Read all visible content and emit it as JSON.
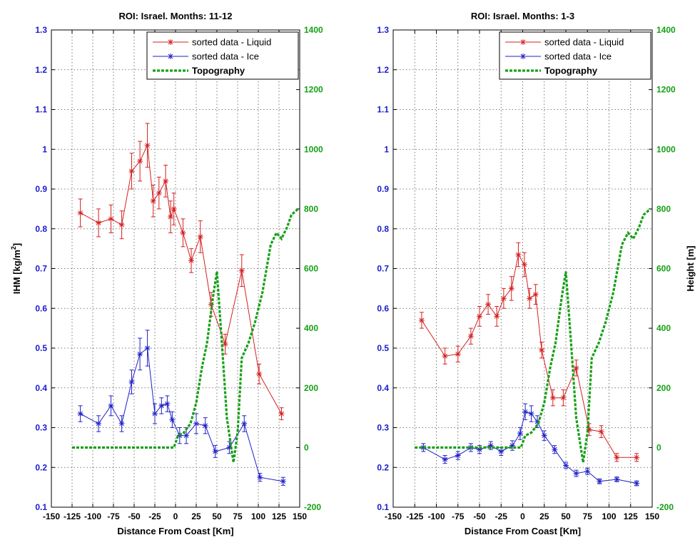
{
  "colors": {
    "liquid": "#d42020",
    "ice": "#2020c8",
    "topo": "#18a018",
    "left_axis": "#1a1ad0",
    "right_axis": "#14a014",
    "grid": "#555555"
  },
  "chart_data": [
    {
      "type": "line",
      "title": "ROI: Israel. Months: 11-12",
      "xlabel": "Distance From Coast [Km]",
      "ylabel_left": "IHM [kg/m",
      "ylabel_left_sup": "2",
      "ylabel_left_close": "]",
      "ylabel_right": "",
      "xlim": [
        -150,
        150
      ],
      "ylim_left": [
        0.1,
        1.3
      ],
      "ylim_right": [
        -200,
        1400
      ],
      "x_ticks": [
        -150,
        -125,
        -100,
        -75,
        -50,
        -25,
        0,
        25,
        50,
        75,
        100,
        125,
        150
      ],
      "y_ticks_left": [
        0.1,
        0.2,
        0.3,
        0.4,
        0.5,
        0.6,
        0.7,
        0.8,
        0.9,
        1,
        1.1,
        1.2,
        1.3
      ],
      "y_ticks_right": [
        -200,
        0,
        200,
        400,
        600,
        800,
        1000,
        1200,
        1400
      ],
      "grid": true,
      "legend_position": "top-right",
      "legend": [
        "sorted data - Liquid",
        "sorted data - Ice",
        "Topography"
      ],
      "series": [
        {
          "name": "sorted data - Liquid",
          "axis": "left",
          "marker": "star",
          "errorbars": true,
          "x": [
            -115,
            -93,
            -78,
            -65,
            -53,
            -43,
            -34,
            -27,
            -20,
            -12,
            -6,
            -2,
            9,
            19,
            30,
            43,
            60,
            80,
            101,
            128
          ],
          "y": [
            0.84,
            0.815,
            0.825,
            0.81,
            0.945,
            0.97,
            1.01,
            0.87,
            0.89,
            0.92,
            0.83,
            0.85,
            0.79,
            0.72,
            0.78,
            0.61,
            0.51,
            0.695,
            0.435,
            0.335
          ],
          "err": [
            0.035,
            0.035,
            0.035,
            0.035,
            0.045,
            0.05,
            0.055,
            0.04,
            0.04,
            0.04,
            0.04,
            0.04,
            0.035,
            0.03,
            0.04,
            0.03,
            0.025,
            0.04,
            0.025,
            0.015
          ]
        },
        {
          "name": "sorted data - Ice",
          "axis": "left",
          "marker": "star",
          "errorbars": true,
          "x": [
            -115,
            -93,
            -78,
            -65,
            -53,
            -43,
            -34,
            -25,
            -17,
            -10,
            -4,
            5,
            13,
            25,
            36,
            48,
            65,
            83,
            102,
            130
          ],
          "y": [
            0.335,
            0.31,
            0.355,
            0.31,
            0.415,
            0.485,
            0.5,
            0.335,
            0.355,
            0.36,
            0.32,
            0.28,
            0.28,
            0.31,
            0.305,
            0.24,
            0.25,
            0.31,
            0.175,
            0.165
          ],
          "err": [
            0.02,
            0.02,
            0.025,
            0.02,
            0.03,
            0.04,
            0.045,
            0.025,
            0.02,
            0.02,
            0.02,
            0.02,
            0.02,
            0.025,
            0.02,
            0.015,
            0.015,
            0.02,
            0.01,
            0.01
          ]
        },
        {
          "name": "Topography",
          "axis": "right",
          "marker": "none",
          "style": "dashed",
          "x": [
            -125,
            -100,
            -75,
            -50,
            -25,
            -2,
            3,
            10,
            18,
            25,
            32,
            38,
            45,
            50,
            56,
            62,
            70,
            75,
            80,
            88,
            96,
            105,
            115,
            122,
            128,
            135,
            140,
            148
          ],
          "y": [
            0,
            0,
            0,
            0,
            0,
            0,
            40,
            50,
            80,
            150,
            270,
            350,
            500,
            590,
            350,
            100,
            -50,
            50,
            300,
            350,
            420,
            520,
            680,
            720,
            700,
            740,
            780,
            800
          ]
        }
      ]
    },
    {
      "type": "line",
      "title": "ROI: Israel. Months: 1-3",
      "xlabel": "Distance From Coast [Km]",
      "ylabel_left": "",
      "ylabel_left_sup": "",
      "ylabel_left_close": "",
      "ylabel_right": "Height [m]",
      "xlim": [
        -150,
        150
      ],
      "ylim_left": [
        0.1,
        1.3
      ],
      "ylim_right": [
        -200,
        1400
      ],
      "x_ticks": [
        -150,
        -125,
        -100,
        -75,
        -50,
        -25,
        0,
        25,
        50,
        75,
        100,
        125,
        150
      ],
      "y_ticks_left": [
        0.1,
        0.2,
        0.3,
        0.4,
        0.5,
        0.6,
        0.7,
        0.8,
        0.9,
        1,
        1.1,
        1.2,
        1.3
      ],
      "y_ticks_right": [
        -200,
        0,
        200,
        400,
        600,
        800,
        1000,
        1200,
        1400
      ],
      "grid": true,
      "legend_position": "top-right",
      "legend": [
        "sorted data - Liquid",
        "sorted data - Ice",
        "Topography"
      ],
      "series": [
        {
          "name": "sorted data - Liquid",
          "axis": "left",
          "marker": "star",
          "errorbars": true,
          "x": [
            -117,
            -90,
            -75,
            -60,
            -50,
            -40,
            -30,
            -22,
            -13,
            -5,
            2,
            8,
            15,
            22,
            35,
            47,
            62,
            77,
            91,
            109,
            132
          ],
          "y": [
            0.57,
            0.48,
            0.485,
            0.53,
            0.58,
            0.61,
            0.58,
            0.625,
            0.65,
            0.735,
            0.71,
            0.625,
            0.635,
            0.495,
            0.375,
            0.375,
            0.45,
            0.295,
            0.29,
            0.225,
            0.225
          ],
          "err": [
            0.02,
            0.02,
            0.02,
            0.02,
            0.025,
            0.025,
            0.025,
            0.025,
            0.03,
            0.03,
            0.03,
            0.025,
            0.025,
            0.02,
            0.02,
            0.02,
            0.02,
            0.015,
            0.015,
            0.01,
            0.01
          ]
        },
        {
          "name": "sorted data - Ice",
          "axis": "left",
          "marker": "star",
          "errorbars": true,
          "x": [
            -115,
            -90,
            -75,
            -60,
            -50,
            -37,
            -25,
            -12,
            -3,
            3,
            10,
            17,
            25,
            37,
            50,
            62,
            75,
            89,
            109,
            132
          ],
          "y": [
            0.25,
            0.22,
            0.23,
            0.25,
            0.245,
            0.255,
            0.24,
            0.255,
            0.285,
            0.34,
            0.335,
            0.315,
            0.28,
            0.245,
            0.205,
            0.185,
            0.19,
            0.165,
            0.17,
            0.16
          ],
          "err": [
            0.01,
            0.01,
            0.01,
            0.01,
            0.01,
            0.01,
            0.01,
            0.012,
            0.015,
            0.02,
            0.02,
            0.015,
            0.012,
            0.01,
            0.008,
            0.008,
            0.008,
            0.006,
            0.006,
            0.006
          ]
        },
        {
          "name": "Topography",
          "axis": "right",
          "marker": "none",
          "style": "dashed",
          "x": [
            -125,
            -100,
            -75,
            -50,
            -25,
            -2,
            3,
            10,
            18,
            25,
            32,
            38,
            45,
            50,
            56,
            62,
            70,
            75,
            80,
            88,
            96,
            105,
            115,
            122,
            128,
            135,
            140,
            148
          ],
          "y": [
            0,
            0,
            0,
            0,
            0,
            0,
            40,
            50,
            80,
            150,
            270,
            350,
            500,
            590,
            350,
            100,
            -50,
            50,
            300,
            350,
            420,
            520,
            680,
            720,
            700,
            740,
            780,
            800
          ]
        }
      ]
    }
  ]
}
